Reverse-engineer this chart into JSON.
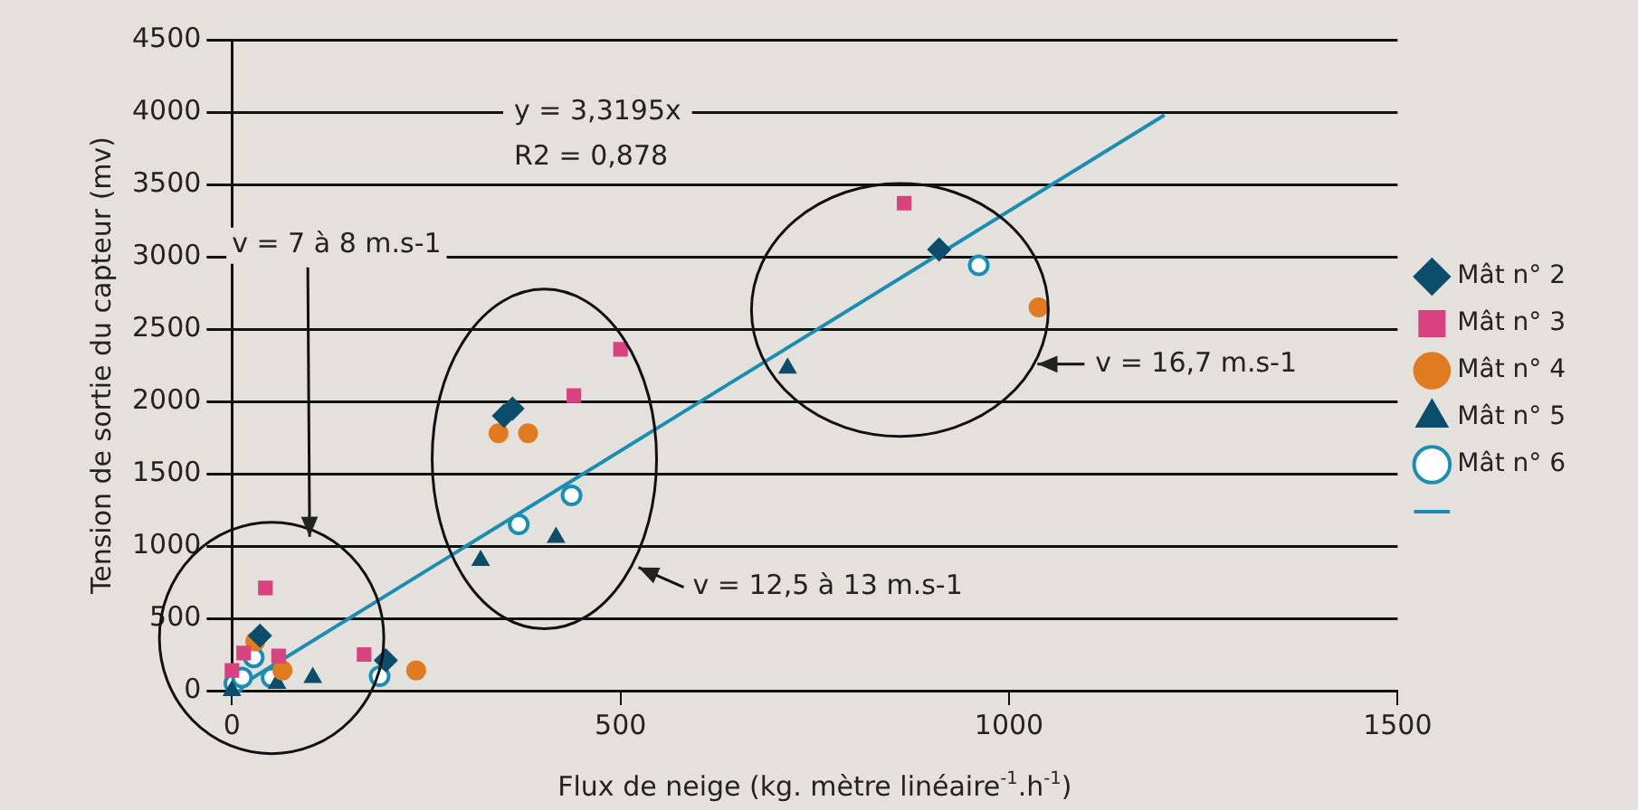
{
  "chart_data": {
    "type": "scatter",
    "xlabel": "Flux de neige (kg. mètre linéaire$^{-1}$.h$^{-1}$)",
    "ylabel": "Tension de sortie du capteur (mv)",
    "xlim": [
      0,
      1500
    ],
    "xticks": [
      0,
      500,
      1000,
      1500
    ],
    "ylim": [
      0,
      4500
    ],
    "yticks": [
      0,
      500,
      1000,
      1500,
      2000,
      2500,
      3000,
      3500,
      4000,
      4500
    ],
    "grid": "y",
    "legend": "right",
    "series": [
      {
        "name": "Mât n° 2",
        "color": "#0b4d6b",
        "marker": "diamond",
        "x": [
          36,
          198,
          350,
          361,
          910
        ],
        "values": [
          380,
          210,
          1900,
          1950,
          3050
        ]
      },
      {
        "name": "Mât n° 3",
        "color": "#d9417f",
        "marker": "square",
        "x": [
          0,
          15,
          60,
          43,
          170,
          440,
          500,
          865
        ],
        "values": [
          140,
          260,
          240,
          710,
          250,
          2040,
          2360,
          3370
        ]
      },
      {
        "name": "Mât n° 4",
        "color": "#e07b20",
        "marker": "circle",
        "x": [
          30,
          65,
          237,
          343,
          381,
          1038
        ],
        "values": [
          340,
          140,
          140,
          1780,
          1780,
          2650
        ]
      },
      {
        "name": "Mât n° 5",
        "color": "#0b4d6b",
        "marker": "triangle",
        "x": [
          0,
          58,
          104,
          320,
          417,
          715
        ],
        "values": [
          0,
          50,
          90,
          900,
          1060,
          2230
        ]
      },
      {
        "name": "Mât n° 6",
        "color": "#1a8db5",
        "marker": "open-circle",
        "x": [
          3,
          13,
          28,
          51,
          190,
          369,
          437,
          961
        ],
        "values": [
          50,
          90,
          230,
          90,
          100,
          1150,
          1350,
          2940
        ]
      },
      {
        "type": "line",
        "color": "#1a8db5",
        "marker": "none",
        "x": [
          0,
          1200
        ],
        "values": [
          0,
          3980
        ]
      }
    ],
    "annotations": [
      "y = 3,3195x",
      "R2 = 0,878",
      "v = 7 à 8 m.s-1",
      "v = 12,5 à 13 m.s-1",
      "v = 16,7 m.s-1"
    ]
  }
}
